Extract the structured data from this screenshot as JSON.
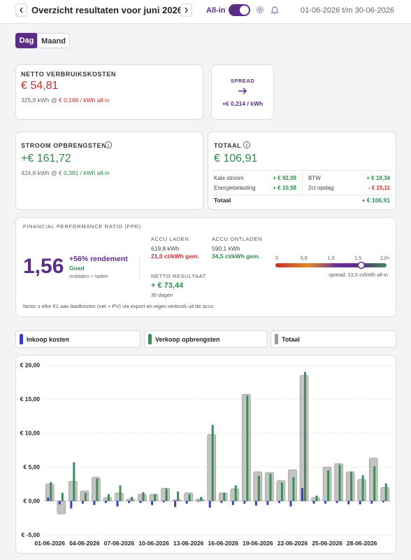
{
  "header": {
    "title": "Overzicht resultaten voor juni 2026",
    "allin_label": "All-in",
    "date_range": "01-06-2026 t/m 30-06-2026"
  },
  "tabs": [
    "Dag",
    "Maand"
  ],
  "cards": {
    "netto": {
      "label": "NETTO VERBRUIKSKOSTEN",
      "amount": "€ 54,81",
      "detail": "325,9 kWh @",
      "detail_price": "€ 0,168 / kWh all-in"
    },
    "spread": {
      "label": "SPREAD",
      "value": "+€ 0,214 / kWh"
    },
    "opbrengsten": {
      "label": "STROOM OPBRENGSTEN",
      "amount": "+€ 161,72",
      "detail": "424,8 kWh @",
      "detail_price": "€ 0,381 / kWh all-in"
    },
    "totaal": {
      "label": "TOTAAL",
      "amount": "€ 106,91",
      "rows": [
        [
          "Kale stroom",
          "+ € 92,09",
          "BTW",
          "+ € 19,34"
        ],
        [
          "Energiebelasting",
          "+ € 10,58",
          "2ct opslag",
          "- € 15,11"
        ]
      ],
      "total_label": "Totaal",
      "total_value": "+ € 106,91"
    }
  },
  "fpr": {
    "label": "FINANCIAL PERFORMANCE RATIO (FPR)",
    "ratio": {
      "value": 1.56,
      "label": "1,56"
    },
    "rendement": "+56% rendement",
    "rating": "Goed",
    "formula": "ontladen ÷ laden",
    "laden": {
      "label": "ACCU LADEN",
      "kwh": "619,8 kWh",
      "price": "21,0 ct/kWh gem."
    },
    "ontladen": {
      "label": "ACCU ONTLADEN",
      "kwh": "590,1 kWh",
      "price": "34,5 ct/kWh gem."
    },
    "netto": {
      "label": "NETTO RESULTAAT",
      "value": "+ € 73,44",
      "period": "30 dagen"
    },
    "scale": {
      "lim": [
        0,
        2
      ],
      "ticks": [
        0,
        {
          "value": 0.5,
          "label": "0,5"
        },
        {
          "value": 1,
          "label": "1,0"
        },
        {
          "value": 1.5,
          "label": "1,5"
        },
        {
          "value": 2,
          "label": "2,0+"
        }
      ],
      "note": "spread: 13,5 ct/kWh all-in"
    },
    "footer": "factor x elke €1 aan laadkosten (net + PV) via export en eigen verbruik uit de accu"
  },
  "chart_data": {
    "type": "bar",
    "categories": [
      "01-06-2026",
      null,
      null,
      "04-06-2026",
      null,
      null,
      "07-06-2026",
      null,
      null,
      "10-06-2026",
      null,
      null,
      "13-06-2026",
      null,
      null,
      "16-06-2026",
      null,
      null,
      "19-06-2026",
      null,
      null,
      "22-06-2026",
      null,
      null,
      "25-06-2026",
      null,
      null,
      "28-06-2026",
      null,
      null
    ],
    "series": [
      {
        "name": "Inkoop kosten",
        "color": "#3b3fbf",
        "values": [
          0.5,
          -0.5,
          -1.1,
          -0.4,
          -0.6,
          -0.3,
          -0.8,
          -0.3,
          -0.3,
          -0.6,
          -0.2,
          -0.9,
          -0.4,
          -0.1,
          -1.0,
          -0.3,
          -0.6,
          -0.4,
          -0.7,
          -0.6,
          -0.3,
          -0.8,
          1.9,
          -0.4,
          -0.4,
          -0.3,
          -0.5,
          -0.5,
          -0.4,
          -0.2
        ]
      },
      {
        "name": "Verkoop opbrengsten",
        "color": "#3d8c5c",
        "values": [
          2.8,
          1.2,
          5.7,
          1.2,
          3.3,
          1.0,
          2.3,
          0.6,
          1.3,
          1.0,
          1.8,
          1.4,
          1.0,
          0.6,
          11.2,
          1.2,
          2.3,
          15.5,
          3.7,
          4.0,
          2.7,
          3.5,
          19.0,
          0.8,
          4.5,
          5.3,
          4.3,
          3.8,
          5.1,
          2.6
        ]
      },
      {
        "name": "Totaal",
        "color": "#9a9c9a",
        "values": [
          2.5,
          -1.9,
          2.9,
          1.5,
          3.5,
          0.5,
          1.2,
          0.3,
          1.0,
          1.0,
          1.9,
          0.2,
          1.2,
          0.3,
          9.8,
          1.2,
          1.8,
          15.7,
          4.3,
          4.2,
          3.0,
          4.6,
          18.5,
          0.5,
          5.0,
          5.5,
          4.3,
          3.2,
          6.3,
          2.0
        ]
      }
    ],
    "ylim": [
      -5.6,
      21.2
    ],
    "yticks": [
      {
        "value": -5,
        "label": "€ -5,00"
      },
      {
        "value": 0,
        "label": "€ 0,00"
      },
      {
        "value": 5,
        "label": "€ 5,00"
      },
      {
        "value": 10,
        "label": "€ 10,00"
      },
      {
        "value": 15,
        "label": "€ 15,00"
      },
      {
        "value": 20,
        "label": "€ 20,00"
      }
    ],
    "grid": true
  }
}
